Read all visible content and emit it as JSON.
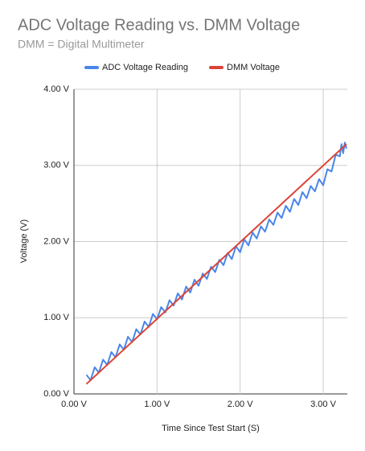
{
  "chart_data": {
    "type": "line",
    "title": "ADC Voltage Reading vs. DMM Voltage",
    "subtitle": "DMM = Digital Multimeter",
    "x_label": "Time Since Test Start (S)",
    "y_label": "Voltage (V)",
    "xlim": [
      0,
      3.29
    ],
    "ylim": [
      0,
      4
    ],
    "xticks": [
      {
        "value": 0,
        "label": "0.00 V"
      },
      {
        "value": 1,
        "label": "1.00 V"
      },
      {
        "value": 2,
        "label": "2.00 V"
      },
      {
        "value": 3,
        "label": "3.00 V"
      }
    ],
    "yticks": [
      {
        "value": 0,
        "label": "0.00 V"
      },
      {
        "value": 1,
        "label": "1.00 V"
      },
      {
        "value": 2,
        "label": "2.00 V"
      },
      {
        "value": 3,
        "label": "3.00 V"
      },
      {
        "value": 4,
        "label": "4.00 V"
      }
    ],
    "grid": true,
    "legend": "top",
    "series": [
      {
        "name": "ADC Voltage Reading",
        "color": "#4a86e8",
        "x": [
          0.15,
          0.2,
          0.25,
          0.3,
          0.35,
          0.4,
          0.45,
          0.5,
          0.55,
          0.6,
          0.65,
          0.7,
          0.75,
          0.8,
          0.85,
          0.9,
          0.95,
          1.0,
          1.05,
          1.1,
          1.15,
          1.2,
          1.25,
          1.3,
          1.35,
          1.4,
          1.45,
          1.5,
          1.55,
          1.6,
          1.65,
          1.7,
          1.75,
          1.8,
          1.85,
          1.9,
          1.95,
          2.0,
          2.05,
          2.1,
          2.15,
          2.2,
          2.25,
          2.3,
          2.35,
          2.4,
          2.45,
          2.5,
          2.55,
          2.6,
          2.65,
          2.7,
          2.75,
          2.8,
          2.85,
          2.9,
          2.95,
          3.0,
          3.05,
          3.1,
          3.15,
          3.2,
          3.22,
          3.24,
          3.26,
          3.28
        ],
        "values": [
          0.25,
          0.18,
          0.35,
          0.28,
          0.45,
          0.38,
          0.55,
          0.48,
          0.65,
          0.58,
          0.75,
          0.68,
          0.85,
          0.78,
          0.95,
          0.88,
          1.05,
          0.98,
          1.14,
          1.07,
          1.23,
          1.16,
          1.32,
          1.24,
          1.41,
          1.33,
          1.5,
          1.42,
          1.58,
          1.51,
          1.67,
          1.6,
          1.76,
          1.69,
          1.85,
          1.77,
          1.94,
          1.86,
          2.03,
          1.95,
          2.12,
          2.04,
          2.2,
          2.13,
          2.29,
          2.22,
          2.38,
          2.31,
          2.47,
          2.39,
          2.56,
          2.48,
          2.65,
          2.57,
          2.73,
          2.66,
          2.82,
          2.74,
          2.95,
          2.92,
          3.14,
          3.12,
          3.28,
          3.16,
          3.3,
          3.22
        ]
      },
      {
        "name": "DMM Voltage",
        "color": "#db4437",
        "x": [
          0.15,
          3.28
        ],
        "values": [
          0.13,
          3.28
        ]
      }
    ]
  }
}
